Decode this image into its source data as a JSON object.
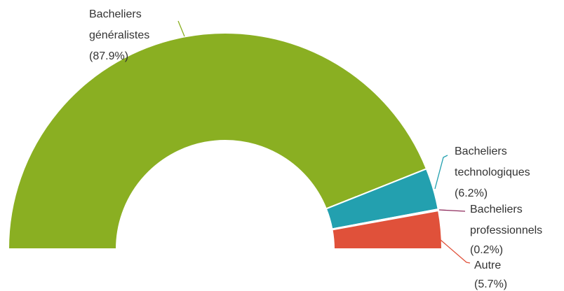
{
  "chart_data": {
    "type": "pie",
    "variant": "semi-donut",
    "title": "",
    "slices": [
      {
        "name": "Bacheliers généralistes",
        "line1": "Bacheliers",
        "line2": "généralistes",
        "pct_label": "(87.9%)",
        "value": 87.9,
        "color": "#8aaf22"
      },
      {
        "name": "Bacheliers technologiques",
        "line1": "Bacheliers",
        "line2": "technologiques",
        "pct_label": "(6.2%)",
        "value": 6.2,
        "color": "#23a0af"
      },
      {
        "name": "Bacheliers professionnels",
        "line1": "Bacheliers",
        "line2": "professionnels",
        "pct_label": "(0.2%)",
        "value": 0.2,
        "color": "#8e2b5c"
      },
      {
        "name": "Autre",
        "line1": "Autre",
        "line2": "",
        "pct_label": "(5.7%)",
        "value": 5.7,
        "color": "#e0513a"
      }
    ]
  }
}
